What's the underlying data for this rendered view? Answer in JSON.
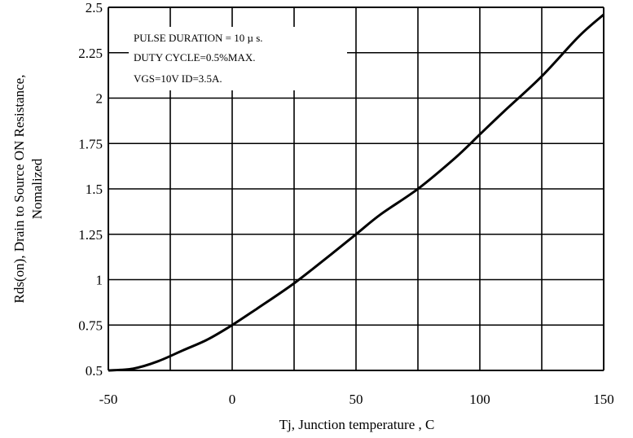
{
  "chart_data": {
    "type": "line",
    "title": "",
    "xlabel": "Tj, Junction temperature , C",
    "ylabel_lines": [
      "Rds(on), Drain to Source ON  Resistance,",
      "Nomalized"
    ],
    "xlim": [
      -50,
      150
    ],
    "ylim": [
      0.5,
      2.5
    ],
    "x_ticks": [
      -50,
      0,
      50,
      100,
      150
    ],
    "x_tick_labels": [
      "-50",
      "0",
      "50",
      "100",
      "150"
    ],
    "y_ticks": [
      0.5,
      0.75,
      1,
      1.25,
      1.5,
      1.75,
      2,
      2.25,
      2.5
    ],
    "y_tick_labels": [
      "0.5",
      "0.75",
      "1",
      "1.25",
      "1.5",
      "1.75",
      "2",
      "2.25",
      "2.5"
    ],
    "grid": true,
    "annotations": [
      "PULSE   DURATION = 10 µ s.",
      "DUTY    CYCLE=0.5%MAX.",
      "VGS=10V   ID=3.5A."
    ],
    "series": [
      {
        "x": [
          -50,
          -40,
          -30,
          -20,
          -10,
          0,
          10,
          25,
          40,
          50,
          60,
          75,
          90,
          100,
          110,
          125,
          140,
          150
        ],
        "y": [
          0.5,
          0.51,
          0.55,
          0.61,
          0.67,
          0.75,
          0.84,
          0.98,
          1.14,
          1.25,
          1.36,
          1.5,
          1.67,
          1.8,
          1.93,
          2.12,
          2.34,
          2.46
        ]
      }
    ],
    "line_color": "#000000"
  }
}
